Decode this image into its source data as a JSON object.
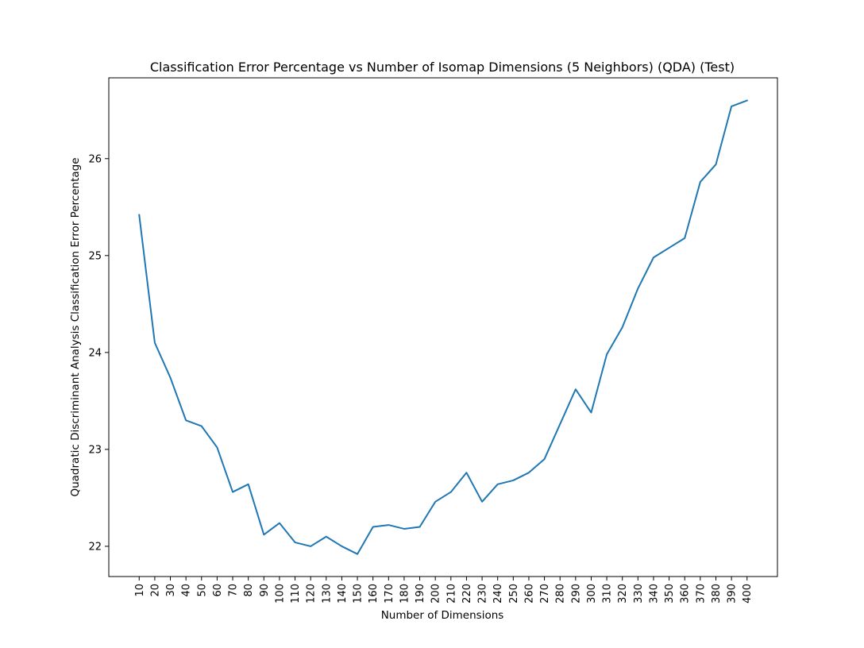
{
  "chart_data": {
    "type": "line",
    "title": "Classification Error Percentage vs Number of Isomap Dimensions (5 Neighbors) (QDA) (Test)",
    "xlabel": "Number of Dimensions",
    "ylabel": "Quadratic Discriminant Analysis Classification Error Percentage",
    "x": [
      10,
      20,
      30,
      40,
      50,
      60,
      70,
      80,
      90,
      100,
      110,
      120,
      130,
      140,
      150,
      160,
      170,
      180,
      190,
      200,
      210,
      220,
      230,
      240,
      250,
      260,
      270,
      280,
      290,
      300,
      310,
      320,
      330,
      340,
      350,
      360,
      370,
      380,
      390,
      400
    ],
    "series": [
      {
        "values": [
          25.42,
          24.1,
          23.74,
          23.3,
          23.24,
          23.02,
          22.56,
          22.64,
          22.12,
          22.24,
          22.04,
          22.0,
          22.1,
          22.0,
          21.92,
          22.2,
          22.22,
          22.18,
          22.2,
          22.46,
          22.56,
          22.76,
          22.46,
          22.64,
          22.68,
          22.76,
          22.9,
          23.26,
          23.62,
          23.38,
          23.98,
          24.26,
          24.66,
          24.98,
          25.08,
          25.18,
          25.76,
          25.94,
          26.54,
          26.6
        ],
        "color": "#1f77b4"
      }
    ],
    "x_tick_labels": [
      "10",
      "20",
      "30",
      "40",
      "50",
      "60",
      "70",
      "80",
      "90",
      "100",
      "110",
      "120",
      "130",
      "140",
      "150",
      "160",
      "170",
      "180",
      "190",
      "200",
      "210",
      "220",
      "230",
      "240",
      "250",
      "260",
      "270",
      "280",
      "290",
      "300",
      "310",
      "320",
      "330",
      "340",
      "350",
      "360",
      "370",
      "380",
      "390",
      "400"
    ],
    "y_ticks": [
      22,
      23,
      24,
      25,
      26
    ],
    "y_tick_labels": [
      "22",
      "23",
      "24",
      "25",
      "26"
    ],
    "xlim": [
      -9.5,
      419.5
    ],
    "ylim": [
      21.688,
      26.834
    ],
    "grid": false,
    "legend": false
  }
}
